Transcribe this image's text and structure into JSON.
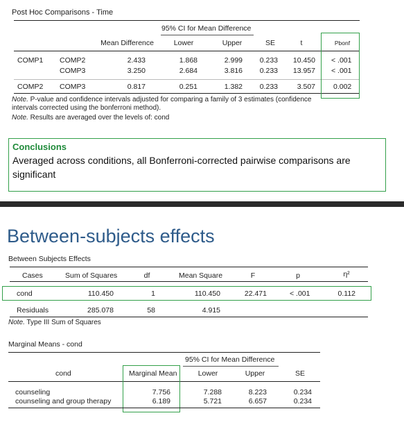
{
  "posthoc": {
    "title": "Post Hoc Comparisons - Time",
    "ci_header": "95% CI for Mean Difference",
    "headers": {
      "mean_diff": "Mean Difference",
      "lower": "Lower",
      "upper": "Upper",
      "se": "SE",
      "t": "t",
      "pbonf": "Pbonf"
    },
    "rows": [
      {
        "c1": "COMP1",
        "c2": "COMP2",
        "md": "2.433",
        "lower": "1.868",
        "upper": "2.999",
        "se": "0.233",
        "t": "10.450",
        "p": "< .001"
      },
      {
        "c1": "",
        "c2": "COMP3",
        "md": "3.250",
        "lower": "2.684",
        "upper": "3.816",
        "se": "0.233",
        "t": "13.957",
        "p": "< .001"
      },
      {
        "c1": "COMP2",
        "c2": "COMP3",
        "md": "0.817",
        "lower": "0.251",
        "upper": "1.382",
        "se": "0.233",
        "t": "3.507",
        "p": "0.002"
      }
    ],
    "note1_label": "Note.",
    "note1_text": " P-value and confidence intervals adjusted for comparing a family of 3 estimates (confidence intervals corrected using the bonferroni method).",
    "note2_label": "Note.",
    "note2_text": " Results are averaged over the levels of: cond"
  },
  "conclusions": {
    "title": "Conclusions",
    "text": "Averaged across conditions, all Bonferroni-corrected pairwise comparisons are significant"
  },
  "section_title": "Between-subjects effects",
  "between": {
    "title": "Between Subjects Effects",
    "headers": {
      "cases": "Cases",
      "ss": "Sum of Squares",
      "df": "df",
      "ms": "Mean Square",
      "f": "F",
      "p": "p",
      "eta": "η²"
    },
    "rows": [
      {
        "case": "cond",
        "ss": "110.450",
        "df": "1",
        "ms": "110.450",
        "f": "22.471",
        "p": "< .001",
        "eta": "0.112"
      },
      {
        "case": "Residuals",
        "ss": "285.078",
        "df": "58",
        "ms": "4.915",
        "f": "",
        "p": "",
        "eta": ""
      }
    ],
    "note_label": "Note.",
    "note_text": " Type III Sum of Squares"
  },
  "marginal": {
    "title": "Marginal Means - cond",
    "ci_header": "95% CI for Mean Difference",
    "headers": {
      "cond": "cond",
      "mm": "Marginal Mean",
      "lower": "Lower",
      "upper": "Upper",
      "se": "SE"
    },
    "rows": [
      {
        "cond": "counseling",
        "mm": "7.756",
        "lower": "7.288",
        "upper": "8.223",
        "se": "0.234"
      },
      {
        "cond": "counseling and group therapy",
        "mm": "6.189",
        "lower": "5.721",
        "upper": "6.657",
        "se": "0.234"
      }
    ]
  },
  "colors": {
    "highlight": "#33a04a",
    "title_blue": "#2e5b8a",
    "conclusion_title": "#1f8a3a"
  }
}
